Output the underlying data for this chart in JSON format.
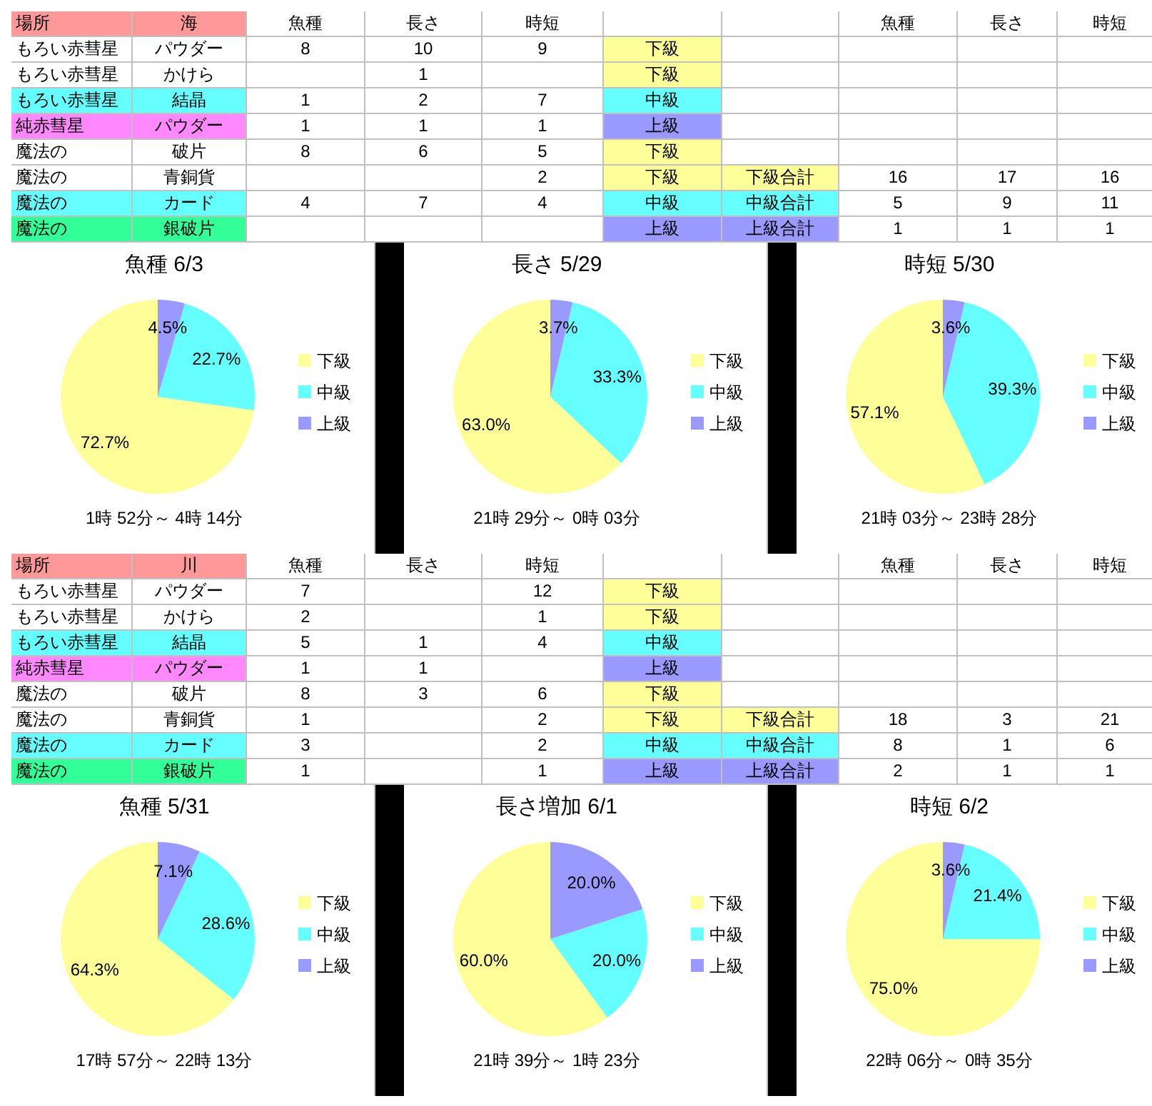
{
  "chart_data": [
    {
      "type": "other",
      "cell_labels": [
        [
          "場所",
          "海",
          "魚種",
          "長さ",
          "時短",
          null,
          null,
          "魚種",
          "長さ",
          "時短"
        ],
        [
          "もろい赤彗星",
          "パウダー",
          "8",
          "10",
          "9",
          "下級",
          null,
          null,
          null,
          null
        ],
        [
          "もろい赤彗星",
          "かけら",
          null,
          "1",
          null,
          "下級",
          null,
          null,
          null,
          null
        ],
        [
          "もろい赤彗星",
          "結晶",
          "1",
          "2",
          "7",
          "中級",
          null,
          null,
          null,
          null
        ],
        [
          "純赤彗星",
          "パウダー",
          "1",
          "1",
          "1",
          "上級",
          null,
          null,
          null,
          null
        ],
        [
          "魔法の",
          "破片",
          "8",
          "6",
          "5",
          "下級",
          null,
          null,
          null,
          null
        ],
        [
          "魔法の",
          "青銅貨",
          null,
          null,
          "2",
          "下級",
          "下級合計",
          "16",
          "17",
          "16"
        ],
        [
          "魔法の",
          "カード",
          "4",
          "7",
          "4",
          "中級",
          "中級合計",
          "5",
          "9",
          "11"
        ],
        [
          "魔法の",
          "銀破片",
          null,
          null,
          null,
          "上級",
          "上級合計",
          "1",
          "1",
          "1"
        ]
      ],
      "colors": [
        [
          "#ff9999",
          "#ff9999",
          null,
          null,
          null,
          null,
          null,
          null,
          null,
          null
        ],
        [
          null,
          null,
          null,
          null,
          null,
          "#ffff99",
          null,
          null,
          null,
          null
        ],
        [
          null,
          null,
          null,
          null,
          null,
          "#ffff99",
          null,
          null,
          null,
          null
        ],
        [
          "#66ffff",
          "#66ffff",
          null,
          null,
          null,
          "#66ffff",
          null,
          null,
          null,
          null
        ],
        [
          "#ff88ff",
          "#ff88ff",
          null,
          null,
          null,
          "#9999ff",
          null,
          null,
          null,
          null
        ],
        [
          null,
          null,
          null,
          null,
          null,
          "#ffff99",
          null,
          null,
          null,
          null
        ],
        [
          null,
          null,
          null,
          null,
          null,
          "#ffff99",
          "#ffff99",
          null,
          null,
          null
        ],
        [
          "#66ffff",
          "#66ffff",
          null,
          null,
          null,
          "#66ffff",
          "#66ffff",
          null,
          null,
          null
        ],
        [
          "#33ff99",
          "#33ff99",
          null,
          null,
          null,
          "#9999ff",
          "#9999ff",
          null,
          null,
          null
        ]
      ]
    },
    {
      "type": "pie",
      "title": "魚種 6/3",
      "categories": [
        "下級",
        "中級",
        "上級"
      ],
      "values": [
        72.7,
        22.7,
        4.5
      ],
      "value_labels": [
        "72.7%",
        "22.7%",
        "4.5%"
      ],
      "colors": [
        "#ffff99",
        "#66ffff",
        "#9999ff"
      ],
      "legend": "right",
      "annotations": [
        "1時 52分～ 4時 14分"
      ]
    },
    {
      "type": "pie",
      "title": "長さ 5/29",
      "categories": [
        "下級",
        "中級",
        "上級"
      ],
      "values": [
        63.0,
        33.3,
        3.7
      ],
      "value_labels": [
        "63.0%",
        "33.3%",
        "3.7%"
      ],
      "colors": [
        "#ffff99",
        "#66ffff",
        "#9999ff"
      ],
      "legend": "right",
      "annotations": [
        "21時 29分～ 0時 03分"
      ]
    },
    {
      "type": "pie",
      "title": "時短 5/30",
      "categories": [
        "下級",
        "中級",
        "上級"
      ],
      "values": [
        57.1,
        39.3,
        3.6
      ],
      "value_labels": [
        "57.1%",
        "39.3%",
        "3.6%"
      ],
      "colors": [
        "#ffff99",
        "#66ffff",
        "#9999ff"
      ],
      "legend": "right",
      "annotations": [
        "21時 03分～ 23時 28分"
      ]
    },
    {
      "type": "other",
      "cell_labels": [
        [
          "場所",
          "川",
          "魚種",
          "長さ",
          "時短",
          null,
          null,
          "魚種",
          "長さ",
          "時短"
        ],
        [
          "もろい赤彗星",
          "パウダー",
          "7",
          null,
          "12",
          "下級",
          null,
          null,
          null,
          null
        ],
        [
          "もろい赤彗星",
          "かけら",
          "2",
          null,
          "1",
          "下級",
          null,
          null,
          null,
          null
        ],
        [
          "もろい赤彗星",
          "結晶",
          "5",
          "1",
          "4",
          "中級",
          null,
          null,
          null,
          null
        ],
        [
          "純赤彗星",
          "パウダー",
          "1",
          "1",
          null,
          "上級",
          null,
          null,
          null,
          null
        ],
        [
          "魔法の",
          "破片",
          "8",
          "3",
          "6",
          "下級",
          null,
          null,
          null,
          null
        ],
        [
          "魔法の",
          "青銅貨",
          "1",
          null,
          "2",
          "下級",
          "下級合計",
          "18",
          "3",
          "21"
        ],
        [
          "魔法の",
          "カード",
          "3",
          null,
          "2",
          "中級",
          "中級合計",
          "8",
          "1",
          "6"
        ],
        [
          "魔法の",
          "銀破片",
          "1",
          null,
          "1",
          "上級",
          "上級合計",
          "2",
          "1",
          "1"
        ]
      ],
      "colors": [
        [
          "#ff9999",
          "#ff9999",
          null,
          null,
          null,
          null,
          null,
          null,
          null,
          null
        ],
        [
          null,
          null,
          null,
          null,
          null,
          "#ffff99",
          null,
          null,
          null,
          null
        ],
        [
          null,
          null,
          null,
          null,
          null,
          "#ffff99",
          null,
          null,
          null,
          null
        ],
        [
          "#66ffff",
          "#66ffff",
          null,
          null,
          null,
          "#66ffff",
          null,
          null,
          null,
          null
        ],
        [
          "#ff88ff",
          "#ff88ff",
          null,
          null,
          null,
          "#9999ff",
          null,
          null,
          null,
          null
        ],
        [
          null,
          null,
          null,
          null,
          null,
          "#ffff99",
          null,
          null,
          null,
          null
        ],
        [
          null,
          null,
          null,
          null,
          null,
          "#ffff99",
          "#ffff99",
          null,
          null,
          null
        ],
        [
          "#66ffff",
          "#66ffff",
          null,
          null,
          null,
          "#66ffff",
          "#66ffff",
          null,
          null,
          null
        ],
        [
          "#33ff99",
          "#33ff99",
          null,
          null,
          null,
          "#9999ff",
          "#9999ff",
          null,
          null,
          null
        ]
      ]
    },
    {
      "type": "pie",
      "title": "魚種 5/31",
      "categories": [
        "下級",
        "中級",
        "上級"
      ],
      "values": [
        64.3,
        28.6,
        7.1
      ],
      "value_labels": [
        "64.3%",
        "28.6%",
        "7.1%"
      ],
      "colors": [
        "#ffff99",
        "#66ffff",
        "#9999ff"
      ],
      "legend": "right",
      "annotations": [
        "17時 57分～ 22時 13分"
      ]
    },
    {
      "type": "pie",
      "title": "長さ増加 6/1",
      "categories": [
        "下級",
        "中級",
        "上級"
      ],
      "values": [
        60.0,
        20.0,
        20.0
      ],
      "value_labels": [
        "60.0%",
        "20.0%",
        "20.0%"
      ],
      "colors": [
        "#ffff99",
        "#66ffff",
        "#9999ff"
      ],
      "legend": "right",
      "annotations": [
        "21時 39分～ 1時 23分"
      ]
    },
    {
      "type": "pie",
      "title": "時短 6/2",
      "categories": [
        "下級",
        "中級",
        "上級"
      ],
      "values": [
        75.0,
        21.4,
        3.6
      ],
      "value_labels": [
        "75.0%",
        "21.4%",
        "3.6%"
      ],
      "colors": [
        "#ffff99",
        "#66ffff",
        "#9999ff"
      ],
      "legend": "right",
      "annotations": [
        "22時 06分～ 0時 35分"
      ]
    }
  ]
}
